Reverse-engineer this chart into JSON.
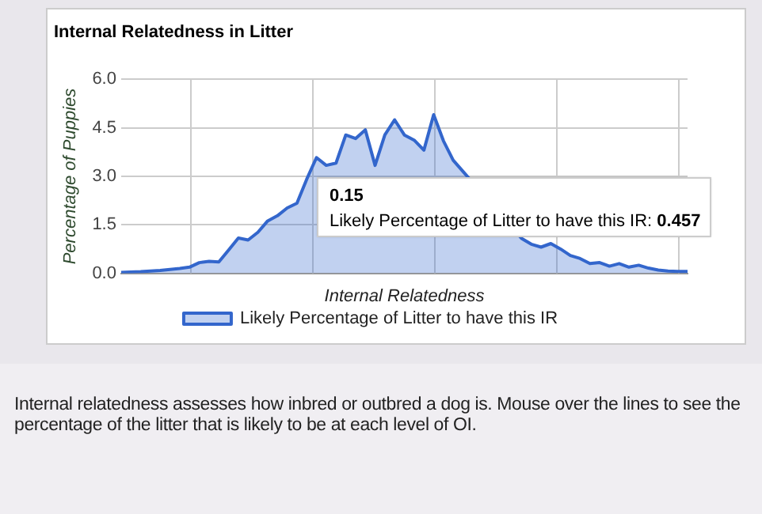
{
  "chart_data": {
    "type": "area",
    "title": "Internal Relatedness in Litter",
    "xlabel": "Internal Relatedness",
    "ylabel": "Percentage of Puppies",
    "categories": [
      null,
      null,
      null,
      null,
      null,
      null,
      null,
      null,
      null,
      null,
      null,
      null,
      null,
      null,
      null,
      null,
      null,
      null,
      null,
      null,
      null,
      null,
      null,
      null,
      null,
      null,
      null,
      null,
      null,
      null,
      null,
      null,
      null,
      null,
      null,
      null,
      null,
      null,
      null,
      null,
      null,
      null,
      null,
      null,
      null,
      null,
      null,
      null,
      null,
      null,
      null,
      null,
      null,
      null,
      null,
      null,
      null,
      null,
      null
    ],
    "series": [
      {
        "name": "Likely Percentage of Litter to have this IR",
        "color": "#3366cc",
        "values": [
          0.03,
          0.04,
          0.05,
          0.07,
          0.09,
          0.12,
          0.15,
          0.19,
          0.33,
          0.37,
          0.35,
          0.72,
          1.09,
          1.03,
          1.27,
          1.62,
          1.78,
          2.02,
          2.17,
          2.91,
          3.58,
          3.34,
          3.41,
          4.28,
          4.17,
          4.44,
          3.34,
          4.28,
          4.75,
          4.28,
          4.12,
          3.81,
          4.91,
          4.1,
          3.5,
          null,
          null,
          null,
          null,
          null,
          null,
          1.08,
          0.9,
          0.81,
          0.92,
          0.75,
          0.55,
          0.457,
          0.3,
          0.33,
          0.22,
          0.3,
          0.19,
          0.25,
          0.16,
          0.1,
          0.07,
          0.06,
          0.06
        ]
      }
    ],
    "ylim": [
      0,
      6
    ],
    "yticks": [
      {
        "value": 0,
        "label": "0.0"
      },
      {
        "value": 1.5,
        "label": "1.5"
      },
      {
        "value": 3,
        "label": "3.0"
      },
      {
        "value": 4.5,
        "label": "4.5"
      },
      {
        "value": 6,
        "label": "6.0"
      }
    ],
    "grid": true,
    "legend": "bottom",
    "marker": "none",
    "annotations": [
      "0.15",
      "Likely Percentage of Litter to have this IR: 0.457",
      "Internal relatedness assesses how inbred or outbred a dog is. Mouse over the lines to see the percentage of the litter that is likely to be at each level of OI."
    ]
  }
}
